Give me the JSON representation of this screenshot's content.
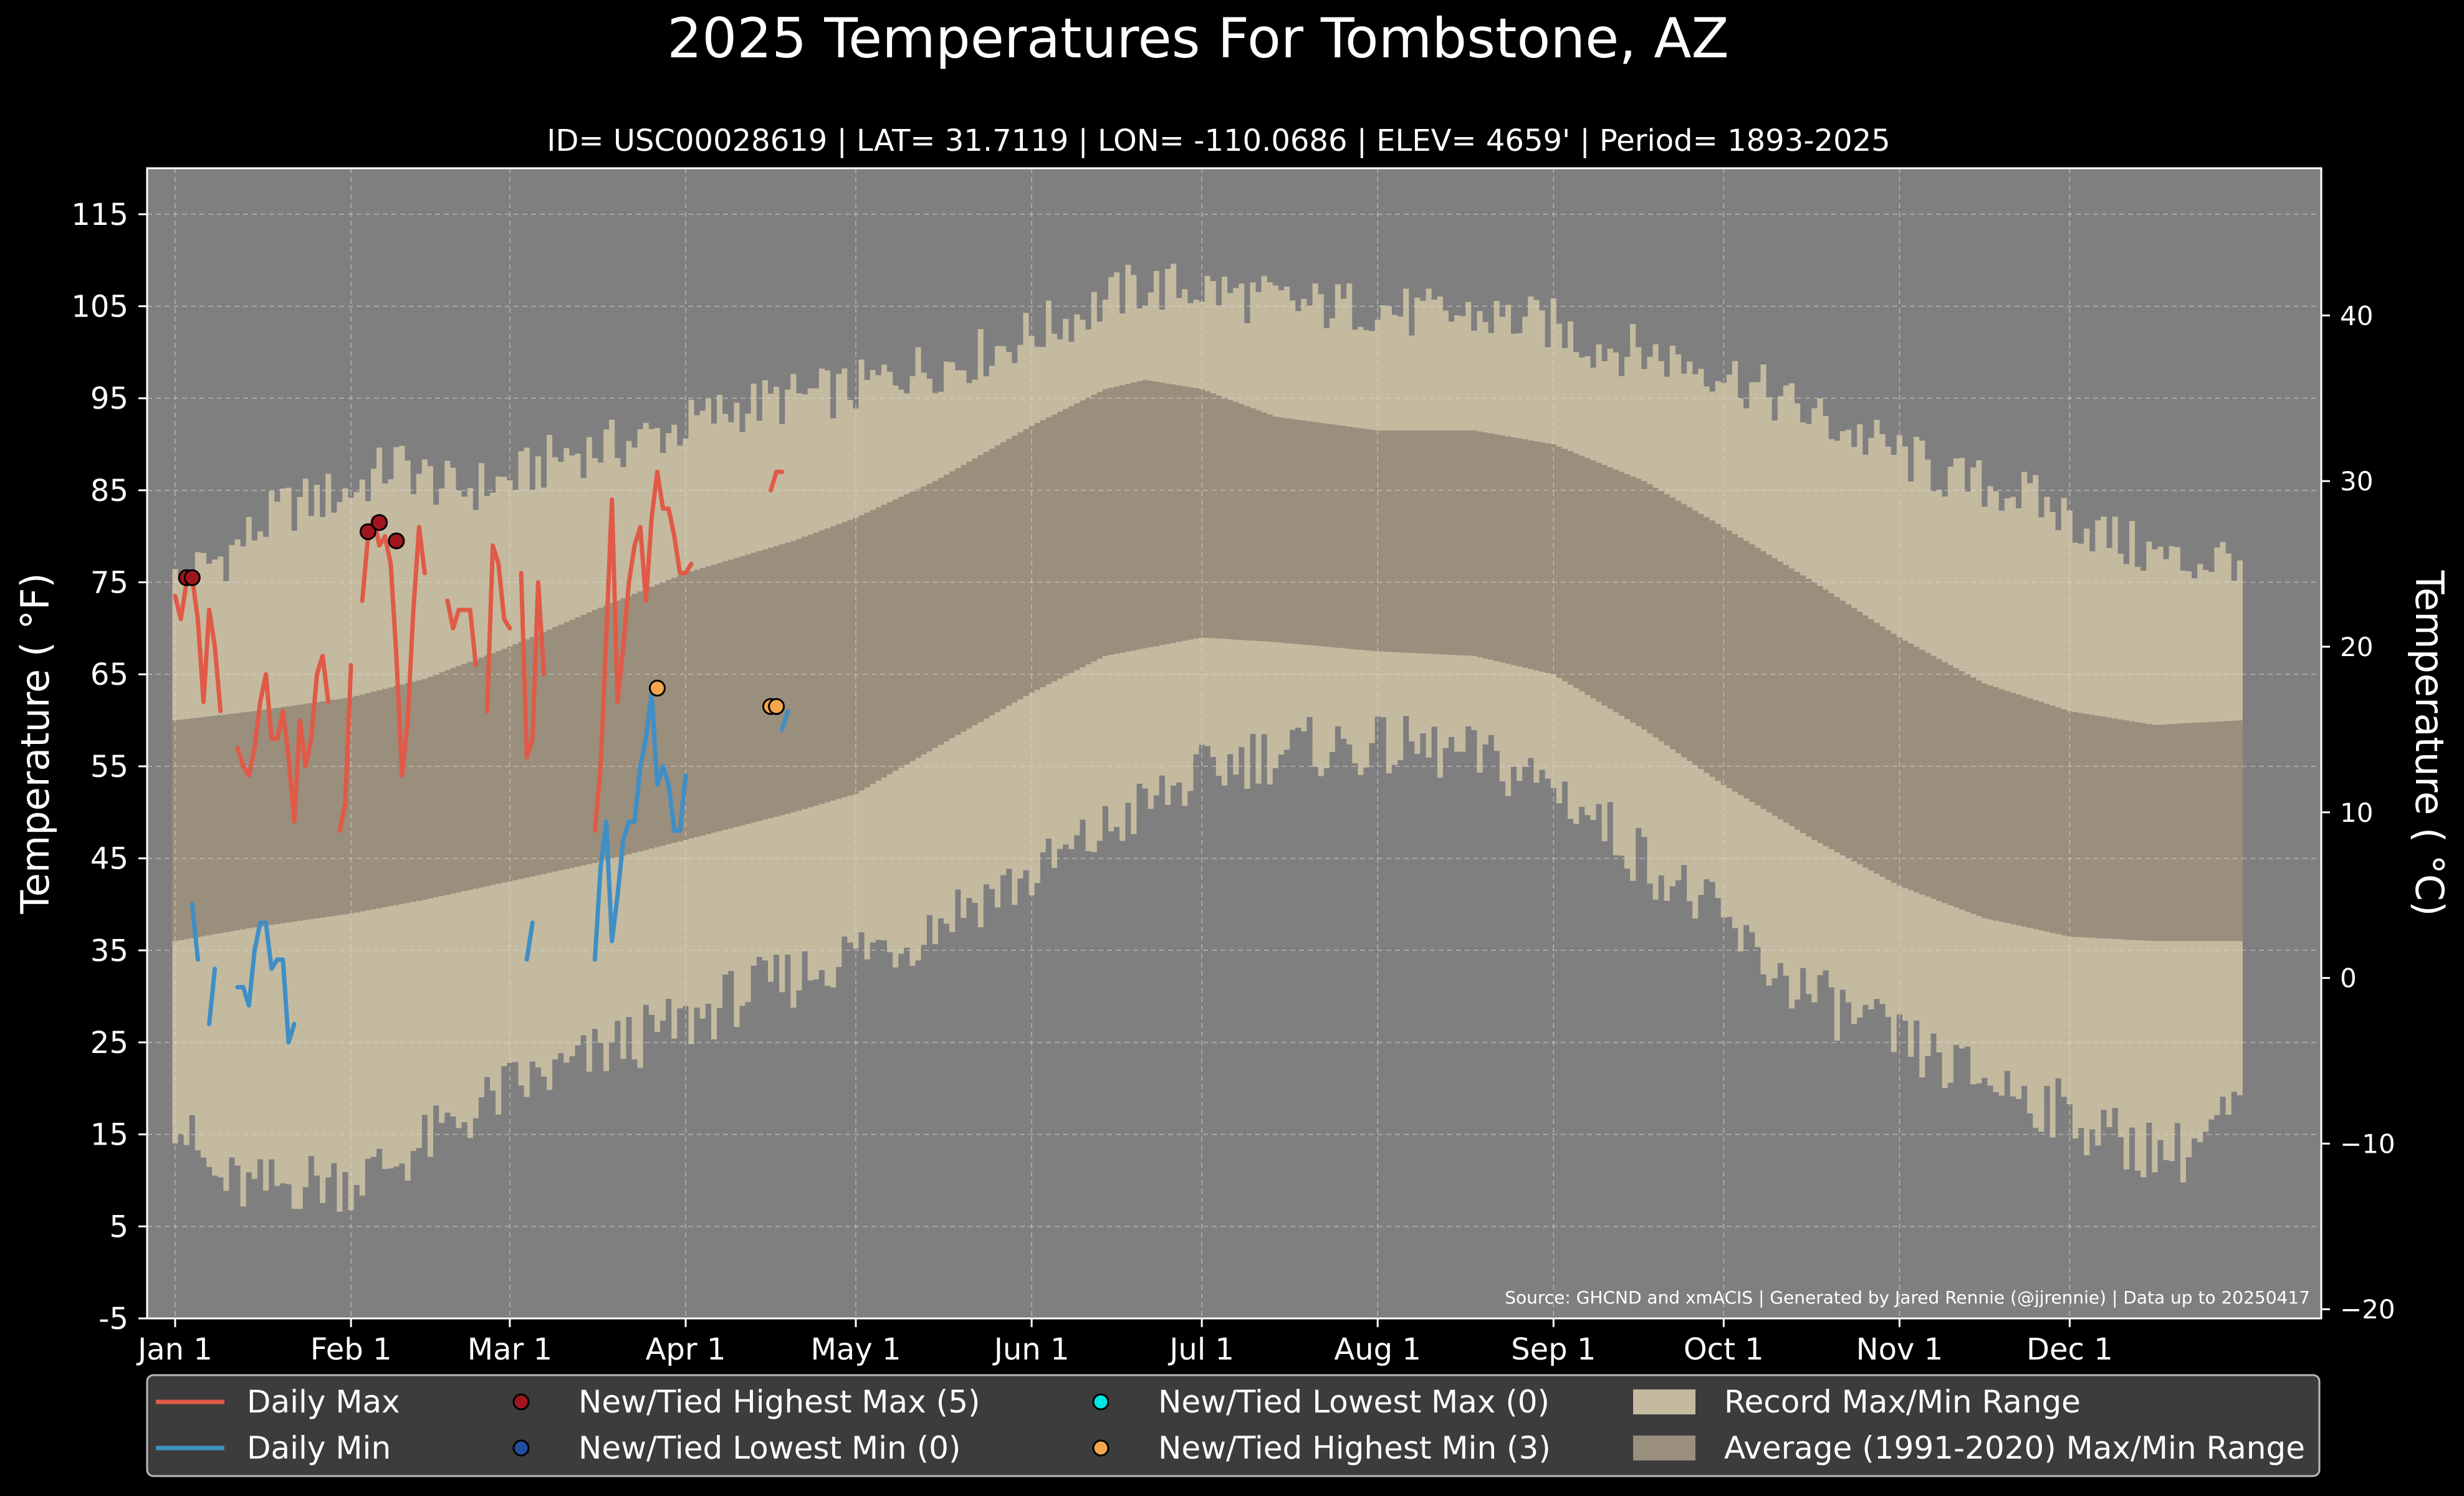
{
  "chart_data": {
    "type": "line",
    "title": "2025 Temperatures For Tombstone, AZ",
    "subtitle": "ID= USC00028619 | LAT= 31.7119 | LON= -110.0686 | ELEV= 4659' | Period= 1893-2025",
    "ylabel": "Temperature ( °F)",
    "ylabel_right": "Temperature ( °C)",
    "ylim": [
      -5,
      120
    ],
    "yticks": [
      -5,
      5,
      15,
      25,
      35,
      45,
      55,
      65,
      75,
      85,
      95,
      105,
      115
    ],
    "yticks_right": [
      -20,
      -10,
      0,
      10,
      20,
      30,
      40
    ],
    "yticks_right_labels": [
      "−20",
      "−10",
      "0",
      "10",
      "20",
      "30",
      "40"
    ],
    "xticks": [
      {
        "day": 1,
        "label": "Jan 1"
      },
      {
        "day": 32,
        "label": "Feb 1"
      },
      {
        "day": 60,
        "label": "Mar 1"
      },
      {
        "day": 91,
        "label": "Apr 1"
      },
      {
        "day": 121,
        "label": "May 1"
      },
      {
        "day": 152,
        "label": "Jun 1"
      },
      {
        "day": 182,
        "label": "Jul 1"
      },
      {
        "day": 213,
        "label": "Aug 1"
      },
      {
        "day": 244,
        "label": "Sep 1"
      },
      {
        "day": 274,
        "label": "Oct 1"
      },
      {
        "day": 305,
        "label": "Nov 1"
      },
      {
        "day": 335,
        "label": "Dec 1"
      }
    ],
    "xlim_days": [
      1,
      365
    ],
    "grid": true,
    "source": "Source: GHCND and xmACIS | Generated by Jared Rennie (@jjrennie) | Data up to 20250417",
    "record_max_points": [
      [
        1,
        75
      ],
      [
        10,
        78
      ],
      [
        20,
        83
      ],
      [
        32,
        85
      ],
      [
        40,
        88
      ],
      [
        50,
        85
      ],
      [
        60,
        86
      ],
      [
        70,
        89
      ],
      [
        80,
        90
      ],
      [
        91,
        92
      ],
      [
        100,
        94
      ],
      [
        110,
        95
      ],
      [
        121,
        96
      ],
      [
        130,
        98
      ],
      [
        140,
        99
      ],
      [
        152,
        102
      ],
      [
        160,
        104
      ],
      [
        170,
        107
      ],
      [
        182,
        107
      ],
      [
        190,
        106
      ],
      [
        200,
        105
      ],
      [
        213,
        105
      ],
      [
        220,
        104
      ],
      [
        230,
        104
      ],
      [
        244,
        103
      ],
      [
        250,
        101
      ],
      [
        260,
        100
      ],
      [
        274,
        98
      ],
      [
        280,
        96
      ],
      [
        290,
        93
      ],
      [
        305,
        89
      ],
      [
        315,
        86
      ],
      [
        325,
        85
      ],
      [
        335,
        82
      ],
      [
        345,
        79
      ],
      [
        355,
        77
      ],
      [
        365,
        78
      ]
    ],
    "record_min_points": [
      [
        1,
        17
      ],
      [
        8,
        10
      ],
      [
        15,
        9
      ],
      [
        25,
        10
      ],
      [
        32,
        10
      ],
      [
        40,
        12
      ],
      [
        50,
        16
      ],
      [
        60,
        20
      ],
      [
        70,
        22
      ],
      [
        80,
        25
      ],
      [
        91,
        27
      ],
      [
        100,
        30
      ],
      [
        110,
        32
      ],
      [
        121,
        35
      ],
      [
        130,
        36
      ],
      [
        140,
        40
      ],
      [
        152,
        43
      ],
      [
        160,
        46
      ],
      [
        170,
        50
      ],
      [
        182,
        54
      ],
      [
        190,
        56
      ],
      [
        200,
        57
      ],
      [
        213,
        57
      ],
      [
        220,
        57
      ],
      [
        230,
        56
      ],
      [
        244,
        53
      ],
      [
        250,
        50
      ],
      [
        260,
        45
      ],
      [
        274,
        38
      ],
      [
        280,
        34
      ],
      [
        290,
        30
      ],
      [
        305,
        25
      ],
      [
        315,
        22
      ],
      [
        325,
        20
      ],
      [
        335,
        17
      ],
      [
        345,
        14
      ],
      [
        355,
        13
      ],
      [
        365,
        18
      ]
    ],
    "avg_max_points": [
      [
        1,
        60
      ],
      [
        15,
        61
      ],
      [
        32,
        62.5
      ],
      [
        45,
        64.5
      ],
      [
        60,
        68
      ],
      [
        75,
        72
      ],
      [
        91,
        76
      ],
      [
        110,
        79.5
      ],
      [
        121,
        82
      ],
      [
        135,
        86
      ],
      [
        152,
        92
      ],
      [
        165,
        96
      ],
      [
        172,
        97
      ],
      [
        182,
        96
      ],
      [
        195,
        93
      ],
      [
        213,
        91.5
      ],
      [
        230,
        91.5
      ],
      [
        244,
        90
      ],
      [
        260,
        86
      ],
      [
        274,
        81
      ],
      [
        290,
        75
      ],
      [
        305,
        69
      ],
      [
        320,
        64
      ],
      [
        335,
        61
      ],
      [
        350,
        59.5
      ],
      [
        365,
        60
      ]
    ],
    "avg_min_points": [
      [
        1,
        36
      ],
      [
        15,
        37.5
      ],
      [
        32,
        39
      ],
      [
        45,
        40.5
      ],
      [
        60,
        42.5
      ],
      [
        75,
        44.5
      ],
      [
        91,
        47
      ],
      [
        110,
        50
      ],
      [
        121,
        52
      ],
      [
        135,
        57
      ],
      [
        152,
        63
      ],
      [
        165,
        67
      ],
      [
        182,
        69
      ],
      [
        195,
        68.5
      ],
      [
        213,
        67.5
      ],
      [
        230,
        67
      ],
      [
        244,
        65
      ],
      [
        260,
        59
      ],
      [
        274,
        53
      ],
      [
        290,
        47
      ],
      [
        305,
        42
      ],
      [
        320,
        38.5
      ],
      [
        335,
        36.5
      ],
      [
        350,
        36
      ],
      [
        365,
        36
      ]
    ],
    "series": [
      {
        "name": "Daily Max",
        "color": "#e05a47",
        "segments": [
          [
            [
              1,
              73.5
            ],
            [
              2,
              71
            ],
            [
              3,
              75
            ],
            [
              4,
              75.5
            ],
            [
              5,
              71
            ],
            [
              6,
              62
            ],
            [
              7,
              72
            ],
            [
              8,
              68
            ],
            [
              9,
              61
            ]
          ],
          [
            [
              12,
              57
            ],
            [
              13,
              55
            ],
            [
              14,
              54
            ],
            [
              15,
              57
            ],
            [
              16,
              62
            ],
            [
              17,
              65
            ],
            [
              18,
              58
            ],
            [
              19,
              58
            ],
            [
              20,
              61
            ],
            [
              21,
              56
            ],
            [
              22,
              49
            ],
            [
              23,
              60
            ],
            [
              24,
              55
            ],
            [
              25,
              58
            ],
            [
              26,
              65
            ],
            [
              27,
              67
            ],
            [
              28,
              62
            ]
          ],
          [
            [
              30,
              48
            ],
            [
              31,
              51
            ],
            [
              32,
              66
            ]
          ],
          [
            [
              34,
              73
            ],
            [
              35,
              80
            ],
            [
              36,
              82
            ],
            [
              37,
              79
            ],
            [
              38,
              80
            ],
            [
              39,
              77
            ],
            [
              40,
              67
            ],
            [
              41,
              54
            ],
            [
              42,
              60
            ],
            [
              43,
              72
            ],
            [
              44,
              81
            ],
            [
              45,
              76
            ]
          ],
          [
            [
              49,
              73
            ],
            [
              50,
              70
            ],
            [
              51,
              72
            ],
            [
              52,
              72
            ],
            [
              53,
              72
            ],
            [
              54,
              66
            ]
          ],
          [
            [
              56,
              61
            ],
            [
              57,
              79
            ],
            [
              58,
              77
            ],
            [
              59,
              71
            ],
            [
              60,
              70
            ]
          ],
          [
            [
              62,
              76
            ],
            [
              63,
              56
            ],
            [
              64,
              58
            ],
            [
              65,
              75
            ],
            [
              66,
              65
            ]
          ],
          [
            [
              75,
              48
            ],
            [
              76,
              55
            ],
            [
              77,
              69
            ],
            [
              78,
              84
            ],
            [
              79,
              62
            ],
            [
              80,
              68
            ],
            [
              81,
              75
            ],
            [
              82,
              79
            ],
            [
              83,
              81
            ],
            [
              84,
              73
            ],
            [
              85,
              82
            ],
            [
              86,
              87
            ],
            [
              87,
              83
            ],
            [
              88,
              83
            ],
            [
              89,
              80
            ],
            [
              90,
              76
            ],
            [
              91,
              76
            ],
            [
              92,
              77
            ]
          ],
          [
            [
              106,
              85
            ],
            [
              107,
              87
            ],
            [
              108,
              87
            ]
          ]
        ]
      },
      {
        "name": "Daily Min",
        "color": "#3f8fc6",
        "segments": [
          [
            [
              4,
              40
            ],
            [
              5,
              34
            ]
          ],
          [
            [
              7,
              27
            ],
            [
              8,
              33
            ]
          ],
          [
            [
              12,
              31
            ],
            [
              13,
              31
            ],
            [
              14,
              29
            ],
            [
              15,
              35
            ],
            [
              16,
              38
            ],
            [
              17,
              38
            ],
            [
              18,
              33
            ],
            [
              19,
              34
            ],
            [
              20,
              34
            ],
            [
              21,
              25
            ],
            [
              22,
              27
            ]
          ],
          [
            [
              63,
              34
            ],
            [
              64,
              38
            ]
          ],
          [
            [
              75,
              34
            ],
            [
              76,
              44
            ],
            [
              77,
              49
            ],
            [
              78,
              36
            ],
            [
              79,
              41
            ],
            [
              80,
              47
            ],
            [
              81,
              49
            ],
            [
              82,
              49
            ],
            [
              83,
              55
            ],
            [
              84,
              58
            ],
            [
              85,
              63
            ],
            [
              86,
              53
            ],
            [
              87,
              55
            ],
            [
              88,
              53
            ],
            [
              89,
              48
            ],
            [
              90,
              48
            ],
            [
              91,
              54
            ]
          ],
          [
            [
              108,
              59
            ],
            [
              109,
              61
            ]
          ]
        ]
      }
    ],
    "markers": [
      {
        "name": "New/Tied Highest Max (5)",
        "color": "#a0161e",
        "points": [
          [
            3,
            75.5
          ],
          [
            4,
            75.5
          ],
          [
            35,
            80.5
          ],
          [
            37,
            81.5
          ],
          [
            40,
            79.5
          ]
        ]
      },
      {
        "name": "New/Tied Lowest Min (0)",
        "color": "#1f4fa0",
        "points": []
      },
      {
        "name": "New/Tied Lowest Max (0)",
        "color": "#00e5e5",
        "points": []
      },
      {
        "name": "New/Tied Highest Min (3)",
        "color": "#f5a64a",
        "points": [
          [
            86,
            63.5
          ],
          [
            106,
            61.5
          ],
          [
            107,
            61.5
          ]
        ]
      }
    ],
    "ranges": [
      {
        "name": "Record Max/Min Range",
        "color": "#c4baa0"
      },
      {
        "name": "Average (1991-2020) Max/Min Range",
        "color": "#9a8e7d"
      }
    ],
    "legend": {
      "placement": "bottom",
      "items": [
        {
          "label": "Daily Max",
          "kind": "line",
          "color": "#e05a47"
        },
        {
          "label": "Daily Min",
          "kind": "line",
          "color": "#3f8fc6"
        },
        {
          "label": "New/Tied Highest Max (5)",
          "kind": "dot",
          "color": "#a0161e"
        },
        {
          "label": "New/Tied Lowest Min (0)",
          "kind": "dot",
          "color": "#1f4fa0"
        },
        {
          "label": "New/Tied Lowest Max (0)",
          "kind": "dot",
          "color": "#00e5e5"
        },
        {
          "label": "New/Tied Highest Min (3)",
          "kind": "dot",
          "color": "#f5a64a"
        },
        {
          "label": "Record Max/Min Range",
          "kind": "patch",
          "color": "#c4baa0"
        },
        {
          "label": "Average (1991-2020) Max/Min Range",
          "kind": "patch",
          "color": "#9a8e7d"
        }
      ]
    },
    "colors": {
      "background": "#000000",
      "plot_background": "#7f7f7f",
      "record_range": "#c4baa0",
      "avg_range": "#9a8e7d"
    }
  }
}
